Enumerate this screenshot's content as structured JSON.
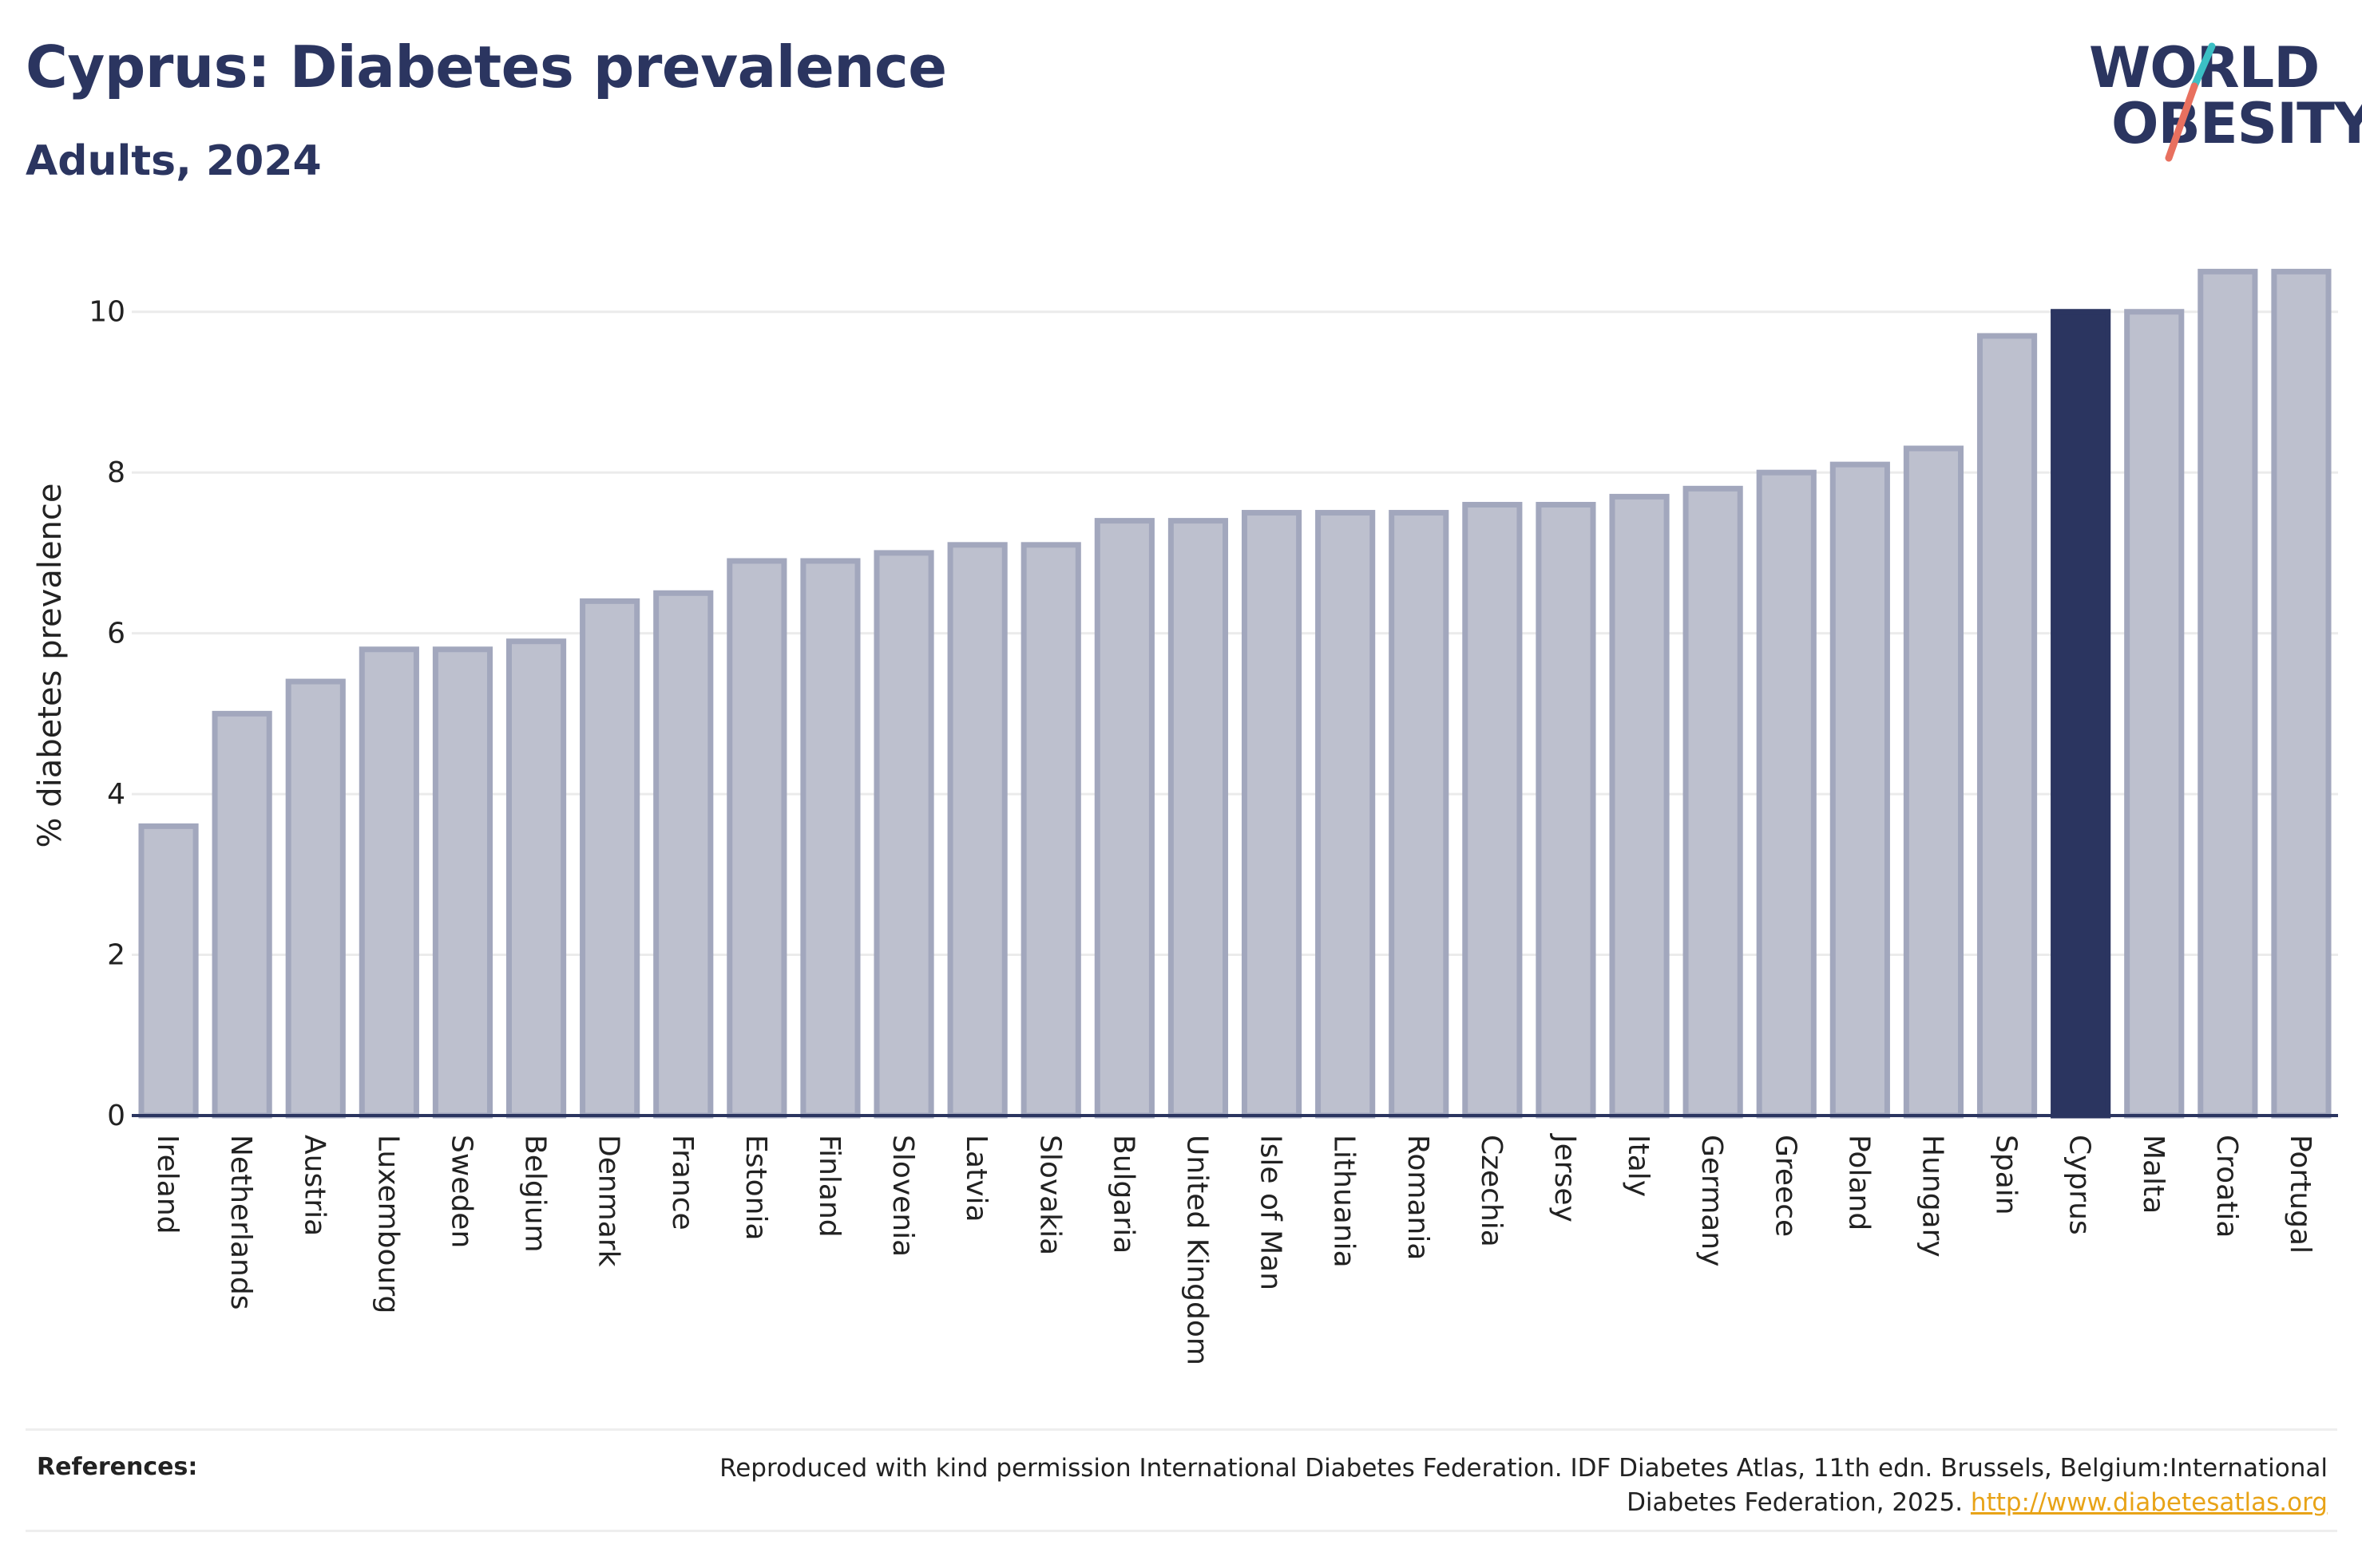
{
  "header": {
    "title": "Cyprus: Diabetes prevalence",
    "subtitle": "Adults, 2024"
  },
  "logo": {
    "line1": "WORLD",
    "line2": "OBESITY",
    "slash_colors": [
      "#3bbfc4",
      "#e8705f"
    ]
  },
  "chart_data": {
    "type": "bar",
    "categories": [
      "Ireland",
      "Netherlands",
      "Austria",
      "Luxembourg",
      "Sweden",
      "Belgium",
      "Denmark",
      "France",
      "Estonia",
      "Finland",
      "Slovenia",
      "Latvia",
      "Slovakia",
      "Bulgaria",
      "United Kingdom",
      "Isle of Man",
      "Lithuania",
      "Romania",
      "Czechia",
      "Jersey",
      "Italy",
      "Germany",
      "Greece",
      "Poland",
      "Hungary",
      "Spain",
      "Cyprus",
      "Malta",
      "Croatia",
      "Portugal"
    ],
    "values": [
      3.6,
      5.0,
      5.4,
      5.8,
      5.8,
      5.9,
      6.4,
      6.5,
      6.9,
      6.9,
      7.0,
      7.1,
      7.1,
      7.4,
      7.4,
      7.5,
      7.5,
      7.5,
      7.6,
      7.6,
      7.7,
      7.8,
      8.0,
      8.1,
      8.3,
      9.7,
      10.0,
      10.0,
      10.5,
      10.5
    ],
    "highlight": "Cyprus",
    "ylabel": "% diabetes prevalence",
    "xlabel": "",
    "ylim": [
      0,
      11
    ],
    "yticks": [
      0,
      2,
      4,
      6,
      8,
      10
    ],
    "grid": true,
    "colors": {
      "bar_fill": "#bdc0ce",
      "bar_stroke": "#a2a7bd",
      "highlight": "#2b3560",
      "grid": "#ebebeb",
      "axis": "#2b3560"
    }
  },
  "references": {
    "label": "References:",
    "text": "Reproduced with kind permission International Diabetes Federation. IDF Diabetes Atlas, 11th edn. Brussels, Belgium:International Diabetes Federation, 2025. ",
    "link": "http://www.diabetesatlas.org"
  }
}
